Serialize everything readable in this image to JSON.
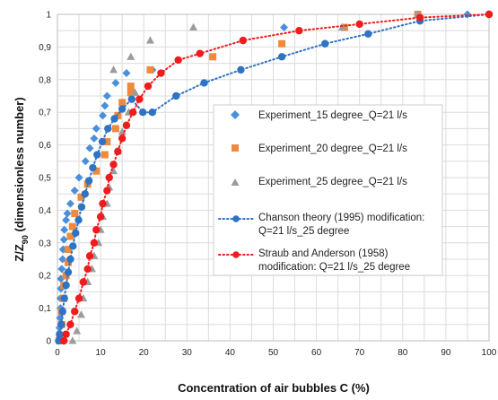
{
  "chart_data": {
    "type": "scatter",
    "xlabel": "Concentration of air bubbles C (%)",
    "ylabel_main": "Z/Z",
    "ylabel_sub": "90",
    "ylabel_rest": " (dimensionless number)",
    "xlim": [
      0,
      100
    ],
    "ylim": [
      0,
      1
    ],
    "x_ticks": [
      "0",
      "10",
      "20",
      "30",
      "40",
      "50",
      "60",
      "70",
      "80",
      "90",
      "100"
    ],
    "y_ticks": [
      "0",
      "0,1",
      "0,2",
      "0,3",
      "0,4",
      "0,5",
      "0,6",
      "0,7",
      "0,8",
      "0,9",
      "1"
    ],
    "grid": true,
    "legend_position": "right-center",
    "series": [
      {
        "name": "Experiment_15 degree_Q=21 l/s",
        "marker": "diamond",
        "color": "#4a8fd8",
        "points": [
          [
            0.5,
            0.01
          ],
          [
            0.5,
            0.04
          ],
          [
            0.6,
            0.07
          ],
          [
            0.7,
            0.1
          ],
          [
            0.7,
            0.13
          ],
          [
            0.8,
            0.16
          ],
          [
            0.8,
            0.19
          ],
          [
            1.0,
            0.22
          ],
          [
            1.2,
            0.25
          ],
          [
            1.3,
            0.28
          ],
          [
            1.5,
            0.31
          ],
          [
            1.6,
            0.34
          ],
          [
            2.0,
            0.37
          ],
          [
            2.3,
            0.39
          ],
          [
            3.0,
            0.42
          ],
          [
            4.0,
            0.46
          ],
          [
            5.0,
            0.5
          ],
          [
            6.5,
            0.55
          ],
          [
            7.5,
            0.59
          ],
          [
            8.5,
            0.62
          ],
          [
            9.0,
            0.65
          ],
          [
            10.5,
            0.69
          ],
          [
            11.0,
            0.72
          ],
          [
            11.5,
            0.75
          ],
          [
            13.5,
            0.79
          ],
          [
            16.0,
            0.82
          ],
          [
            22.0,
            0.83
          ],
          [
            52.5,
            0.96
          ],
          [
            95.0,
            1.0
          ]
        ]
      },
      {
        "name": "Experiment_20 degree_Q=21 l/s",
        "marker": "square",
        "color": "#ee8a3c",
        "points": [
          [
            0.5,
            0.0
          ],
          [
            1.0,
            0.05
          ],
          [
            1.0,
            0.09
          ],
          [
            1.5,
            0.13
          ],
          [
            1.5,
            0.17
          ],
          [
            2.0,
            0.2
          ],
          [
            2.5,
            0.24
          ],
          [
            2.5,
            0.28
          ],
          [
            3.0,
            0.32
          ],
          [
            3.5,
            0.35
          ],
          [
            4.0,
            0.39
          ],
          [
            5.5,
            0.44
          ],
          [
            7.0,
            0.48
          ],
          [
            9.0,
            0.52
          ],
          [
            11.0,
            0.57
          ],
          [
            11.5,
            0.61
          ],
          [
            13.5,
            0.65
          ],
          [
            14.0,
            0.69
          ],
          [
            15.0,
            0.73
          ],
          [
            17.0,
            0.76
          ],
          [
            17.0,
            0.78
          ],
          [
            21.5,
            0.83
          ],
          [
            36.0,
            0.87
          ],
          [
            52.0,
            0.91
          ],
          [
            66.5,
            0.96
          ],
          [
            83.5,
            1.0
          ]
        ]
      },
      {
        "name": "Experiment_25 degree_Q=21 l/s",
        "marker": "triangle",
        "color": "#9c9c9c",
        "points": [
          [
            3.5,
            0.0
          ],
          [
            4.5,
            0.03
          ],
          [
            5.5,
            0.08
          ],
          [
            6.0,
            0.13
          ],
          [
            7.0,
            0.18
          ],
          [
            8.0,
            0.22
          ],
          [
            8.5,
            0.26
          ],
          [
            9.5,
            0.3
          ],
          [
            10.0,
            0.34
          ],
          [
            10.5,
            0.38
          ],
          [
            11.5,
            0.42
          ],
          [
            12.0,
            0.47
          ],
          [
            13.0,
            0.52
          ],
          [
            14.0,
            0.58
          ],
          [
            15.0,
            0.64
          ],
          [
            16.5,
            0.7
          ],
          [
            18.0,
            0.76
          ],
          [
            13.0,
            0.83
          ],
          [
            17.0,
            0.87
          ],
          [
            21.5,
            0.92
          ],
          [
            31.5,
            0.96
          ],
          [
            66.0,
            0.96
          ],
          [
            83.5,
            1.0
          ]
        ]
      },
      {
        "name": "Chanson theory (1995) modification: Q=21 l/s_25 degree",
        "name_line2": "Q=21 l/s_25 degree",
        "name_line1": "Chanson theory (1995) modification:",
        "marker": "circle-dotted-line",
        "color": "#2e73c4",
        "points": [
          [
            0.3,
            0.0
          ],
          [
            0.5,
            0.02
          ],
          [
            0.9,
            0.05
          ],
          [
            1.2,
            0.09
          ],
          [
            1.6,
            0.13
          ],
          [
            2.0,
            0.17
          ],
          [
            2.5,
            0.21
          ],
          [
            3.0,
            0.25
          ],
          [
            3.6,
            0.29
          ],
          [
            4.2,
            0.33
          ],
          [
            4.9,
            0.37
          ],
          [
            5.6,
            0.41
          ],
          [
            6.4,
            0.45
          ],
          [
            7.3,
            0.49
          ],
          [
            8.2,
            0.53
          ],
          [
            9.2,
            0.57
          ],
          [
            10.4,
            0.61
          ],
          [
            11.7,
            0.65
          ],
          [
            13.2,
            0.68
          ],
          [
            15.0,
            0.71
          ],
          [
            17.2,
            0.74
          ],
          [
            19.8,
            0.7
          ],
          [
            22.0,
            0.7
          ],
          [
            27.5,
            0.75
          ],
          [
            34.0,
            0.79
          ],
          [
            42.5,
            0.83
          ],
          [
            52.0,
            0.87
          ],
          [
            62.0,
            0.91
          ],
          [
            72.0,
            0.94
          ],
          [
            84.0,
            0.98
          ],
          [
            100.0,
            1.0
          ]
        ]
      },
      {
        "name": "Straub and Anderson (1958) modification: Q=21 l/s_25 degree",
        "name_line1": "Straub and Anderson (1958)",
        "name_line2": "modification: Q=21 l/s_25 degree",
        "marker": "circle-dotted-line",
        "color": "#ee1c1c",
        "points": [
          [
            1.5,
            0.0
          ],
          [
            2.0,
            0.02
          ],
          [
            3.0,
            0.05
          ],
          [
            4.0,
            0.09
          ],
          [
            5.0,
            0.13
          ],
          [
            6.0,
            0.18
          ],
          [
            7.0,
            0.22
          ],
          [
            7.5,
            0.26
          ],
          [
            8.5,
            0.3
          ],
          [
            9.0,
            0.34
          ],
          [
            10.0,
            0.38
          ],
          [
            10.5,
            0.42
          ],
          [
            11.5,
            0.46
          ],
          [
            12.0,
            0.5
          ],
          [
            13.0,
            0.54
          ],
          [
            14.0,
            0.58
          ],
          [
            15.0,
            0.62
          ],
          [
            16.0,
            0.66
          ],
          [
            17.5,
            0.7
          ],
          [
            19.0,
            0.74
          ],
          [
            21.0,
            0.78
          ],
          [
            24.0,
            0.82
          ],
          [
            28.0,
            0.86
          ],
          [
            33.0,
            0.88
          ],
          [
            43.0,
            0.92
          ],
          [
            56.0,
            0.95
          ],
          [
            70.0,
            0.97
          ],
          [
            84.0,
            0.99
          ],
          [
            100.0,
            1.0
          ]
        ]
      }
    ]
  }
}
